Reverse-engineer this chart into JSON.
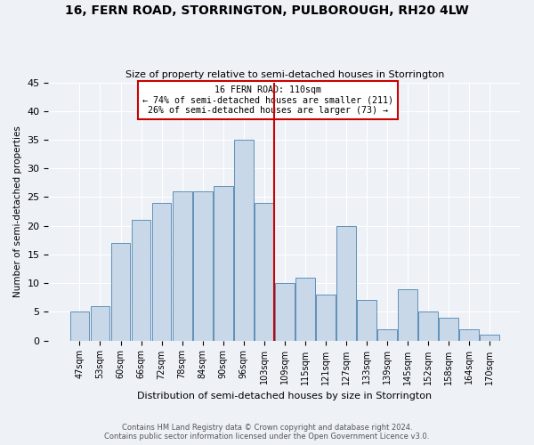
{
  "title": "16, FERN ROAD, STORRINGTON, PULBOROUGH, RH20 4LW",
  "subtitle": "Size of property relative to semi-detached houses in Storrington",
  "xlabel": "Distribution of semi-detached houses by size in Storrington",
  "ylabel": "Number of semi-detached properties",
  "footnote": "Contains HM Land Registry data © Crown copyright and database right 2024.\nContains public sector information licensed under the Open Government Licence v3.0.",
  "categories": [
    "47sqm",
    "53sqm",
    "60sqm",
    "66sqm",
    "72sqm",
    "78sqm",
    "84sqm",
    "90sqm",
    "96sqm",
    "103sqm",
    "109sqm",
    "115sqm",
    "121sqm",
    "127sqm",
    "133sqm",
    "139sqm",
    "145sqm",
    "152sqm",
    "158sqm",
    "164sqm",
    "170sqm"
  ],
  "values": [
    5,
    6,
    17,
    21,
    24,
    26,
    26,
    27,
    35,
    24,
    10,
    11,
    8,
    20,
    7,
    2,
    9,
    5,
    4,
    2,
    1
  ],
  "bar_color": "#c8d8e8",
  "bar_edge_color": "#6090b8",
  "annotation_title": "16 FERN ROAD: 110sqm",
  "annotation_line1": "← 74% of semi-detached houses are smaller (211)",
  "annotation_line2": "26% of semi-detached houses are larger (73) →",
  "annotation_box_color": "#cc0000",
  "background_color": "#eef2f7",
  "ylim": [
    0,
    45
  ],
  "yticks": [
    0,
    5,
    10,
    15,
    20,
    25,
    30,
    35,
    40,
    45
  ]
}
